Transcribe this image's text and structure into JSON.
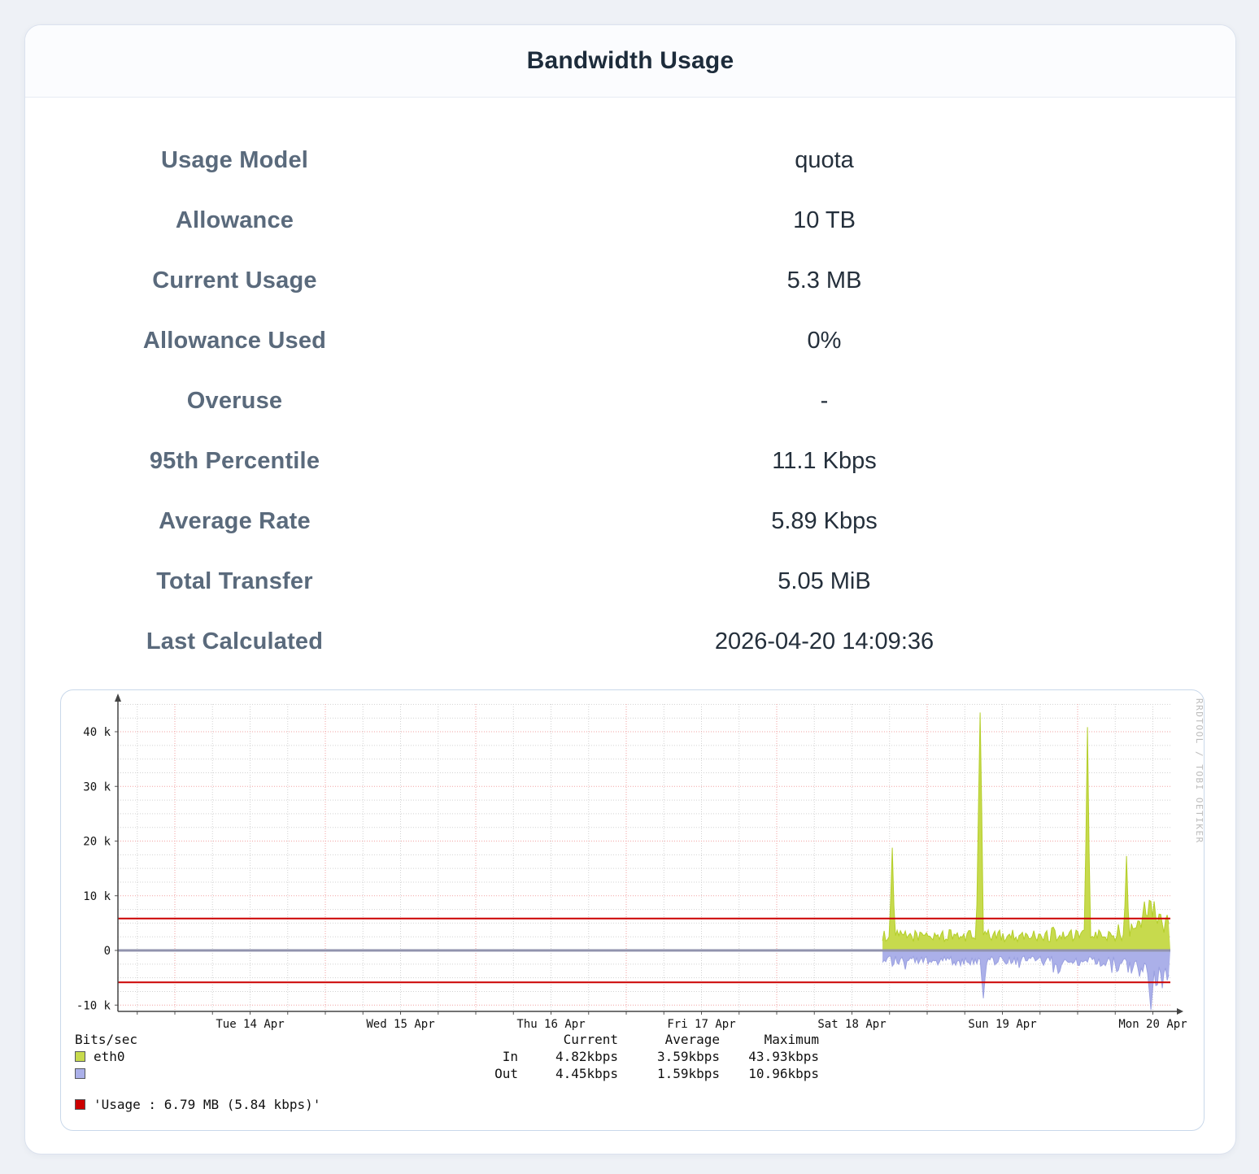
{
  "page": {
    "title": "Bandwidth Usage"
  },
  "fields": [
    {
      "label": "Usage Model",
      "value": "quota"
    },
    {
      "label": "Allowance",
      "value": "10 TB"
    },
    {
      "label": "Current Usage",
      "value": "5.3 MB"
    },
    {
      "label": "Allowance Used",
      "value": "0%"
    },
    {
      "label": "Overuse",
      "value": "-"
    },
    {
      "label": "95th Percentile",
      "value": "11.1 Kbps"
    },
    {
      "label": "Average Rate",
      "value": "5.89 Kbps"
    },
    {
      "label": "Total Transfer",
      "value": "5.05 MiB"
    },
    {
      "label": "Last Calculated",
      "value": "2026-04-20 14:09:36"
    }
  ],
  "chart_data": {
    "type": "area",
    "title": "",
    "y_axis": {
      "unit_label": "Bits/sec",
      "ticks": [
        {
          "label": "40 k",
          "value": 40
        },
        {
          "label": "30 k",
          "value": 30
        },
        {
          "label": "20 k",
          "value": 20
        },
        {
          "label": "10 k",
          "value": 10
        },
        {
          "label": "0",
          "value": 0
        },
        {
          "label": "-10 k",
          "value": -10
        }
      ],
      "minor_step_k": 2.5,
      "ylim_k": [
        -11.15,
        45.3
      ]
    },
    "x_axis": {
      "day_labels": [
        "Tue 14 Apr",
        "Wed 15 Apr",
        "Thu 16 Apr",
        "Fri 17 Apr",
        "Sat 18 Apr",
        "Sun 19 Apr",
        "Mon 20 Apr"
      ],
      "minor_per_day": 4
    },
    "hrules": [
      {
        "value_k": 5.84,
        "color": "#cc0000"
      },
      {
        "value_k": -5.84,
        "color": "#cc0000"
      }
    ],
    "series": [
      {
        "name": "eth0-in",
        "direction": 1,
        "fill": "#c7da4d",
        "stroke": "#b4ce2a",
        "start_frac": 0.7265,
        "end_kbps": 4.82,
        "baseline_kbps": 2.7,
        "jitter_kbps": 1.1,
        "ramp": {
          "from_frac": 0.962,
          "mult": 1.55
        },
        "spikes": [
          {
            "frac": 0.7357,
            "kbps": 19.3,
            "w": 3
          },
          {
            "frac": 0.8192,
            "kbps": 43.93,
            "w": 4
          },
          {
            "frac": 0.9212,
            "kbps": 41.5,
            "w": 3
          },
          {
            "frac": 0.9583,
            "kbps": 17.5,
            "w": 3
          },
          {
            "frac": 0.9699,
            "kbps": 6.0,
            "w": 8
          },
          {
            "frac": 0.9753,
            "kbps": 9.0,
            "w": 6
          },
          {
            "frac": 0.9807,
            "kbps": 10.5,
            "w": 6
          },
          {
            "frac": 0.9846,
            "kbps": 9.0,
            "w": 5
          },
          {
            "frac": 0.99,
            "kbps": 7.5,
            "w": 7
          },
          {
            "frac": 0.997,
            "kbps": 6.5,
            "w": 6
          }
        ]
      },
      {
        "name": "eth0-out",
        "direction": -1,
        "fill": "#abb0e9",
        "stroke": "#9aa0e0",
        "start_frac": 0.7265,
        "end_kbps": -4.45,
        "baseline_kbps": -1.9,
        "jitter_kbps": 0.9,
        "ramp": {
          "from_frac": 0.962,
          "mult": 1.55
        },
        "spikes": [
          {
            "frac": 0.8223,
            "kbps": -8.8,
            "w": 4
          },
          {
            "frac": 0.894,
            "kbps": -4.8,
            "w": 5
          },
          {
            "frac": 0.9497,
            "kbps": -4.5,
            "w": 5
          },
          {
            "frac": 0.9707,
            "kbps": -4.8,
            "w": 5
          },
          {
            "frac": 0.9815,
            "kbps": -10.96,
            "w": 5
          },
          {
            "frac": 0.9869,
            "kbps": -8.0,
            "w": 4
          },
          {
            "frac": 0.9923,
            "kbps": -7.0,
            "w": 4
          },
          {
            "frac": 0.997,
            "kbps": -5.5,
            "w": 4
          }
        ]
      }
    ],
    "legend": {
      "headers": [
        "Current",
        "Average",
        "Maximum"
      ],
      "rows": [
        {
          "swatch": "#c7da4d",
          "label": "eth0",
          "dir": "In",
          "values": [
            "4.82kbps",
            "3.59kbps",
            "43.93kbps"
          ]
        },
        {
          "swatch": "#abb0e9",
          "label": "",
          "dir": "Out",
          "values": [
            "4.45kbps",
            "1.59kbps",
            "10.96kbps"
          ]
        }
      ],
      "rule_row": {
        "swatch": "#cc0000",
        "text": "'Usage : 6.79 MB (5.84 kbps)'"
      }
    },
    "watermark": "RRDTOOL / TOBI OETIKER",
    "colors": {
      "grid_minor": "#d2d2d2",
      "grid_major": "#f2a2a2",
      "zero_line": "#9193ad",
      "axis": "#444444",
      "label_text": "#111111",
      "watermark_text": "#bcbcbc"
    }
  }
}
